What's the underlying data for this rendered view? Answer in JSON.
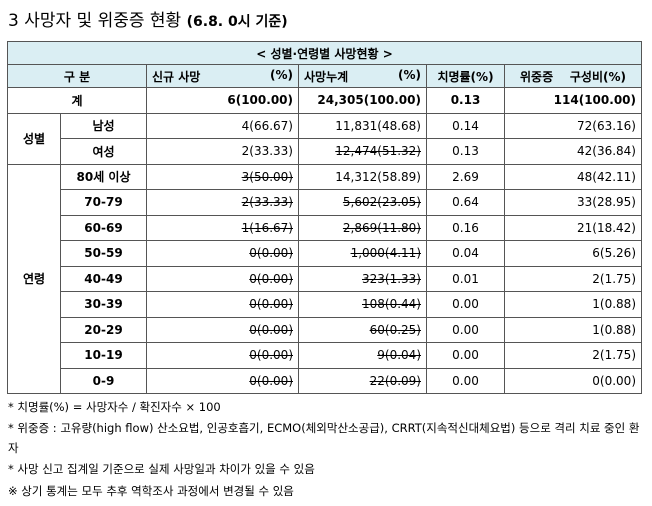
{
  "heading": {
    "title": "3  사망자 및 위중증 현황",
    "date": "(6.8. 0시 기준)"
  },
  "table": {
    "caption": "< 성별·연령별 사망현황 >",
    "headers": {
      "category": "구 분",
      "new_deaths": "신규 사망",
      "new_pct": "(%)",
      "cum_deaths": "사망누계",
      "cum_pct": "(%)",
      "fatality": "치명률(%)",
      "critical_label": "위중증",
      "critical_pct": "구성비(%)"
    },
    "total": {
      "label": "계",
      "new": "6(100.00)",
      "cum": "24,305(100.00)",
      "fatality": "0.13",
      "critical": "114(100.00)"
    },
    "sex_group": "성별",
    "sex_rows": [
      {
        "label": "남성",
        "new": "4(66.67)",
        "cum": "11,831(48.68)",
        "fatality": "0.14",
        "critical": "72(63.16)"
      },
      {
        "label": "여성",
        "new": "2(33.33)",
        "cum": "12,474(51.32)",
        "fatality": "0.13",
        "critical": "42(36.84)"
      }
    ],
    "age_group": "연령",
    "age_rows": [
      {
        "label": "80세 이상",
        "new": "3(50.00)",
        "cum": "14,312(58.89)",
        "fatality": "2.69",
        "critical": "48(42.11)"
      },
      {
        "label": "70-79",
        "new": "2(33.33)",
        "cum": "5,602(23.05)",
        "fatality": "0.64",
        "critical": "33(28.95)"
      },
      {
        "label": "60-69",
        "new": "1(16.67)",
        "cum": "2,869(11.80)",
        "fatality": "0.16",
        "critical": "21(18.42)"
      },
      {
        "label": "50-59",
        "new": "0(0.00)",
        "cum": "1,000(4.11)",
        "fatality": "0.04",
        "critical": "6(5.26)"
      },
      {
        "label": "40-49",
        "new": "0(0.00)",
        "cum": "323(1.33)",
        "fatality": "0.01",
        "critical": "2(1.75)"
      },
      {
        "label": "30-39",
        "new": "0(0.00)",
        "cum": "108(0.44)",
        "fatality": "0.00",
        "critical": "1(0.88)"
      },
      {
        "label": "20-29",
        "new": "0(0.00)",
        "cum": "60(0.25)",
        "fatality": "0.00",
        "critical": "1(0.88)"
      },
      {
        "label": "10-19",
        "new": "0(0.00)",
        "cum": "9(0.04)",
        "fatality": "0.00",
        "critical": "2(1.75)"
      },
      {
        "label": "0-9",
        "new": "0(0.00)",
        "cum": "22(0.09)",
        "fatality": "0.00",
        "critical": "0(0.00)"
      }
    ]
  },
  "notes": [
    "* 치명률(%) = 사망자수 / 확진자수 × 100",
    "* 위중증 : 고유량(high flow) 산소요법, 인공호흡기, ECMO(체외막산소공급), CRRT(지속적신대체요법) 등으로 격리 치료 중인 환자",
    "* 사망 신고 집계일 기준으로 실제 사망일과 차이가 있을 수 있음",
    "※ 상기 통계는 모두 추후 역학조사 과정에서 변경될 수 있음"
  ]
}
